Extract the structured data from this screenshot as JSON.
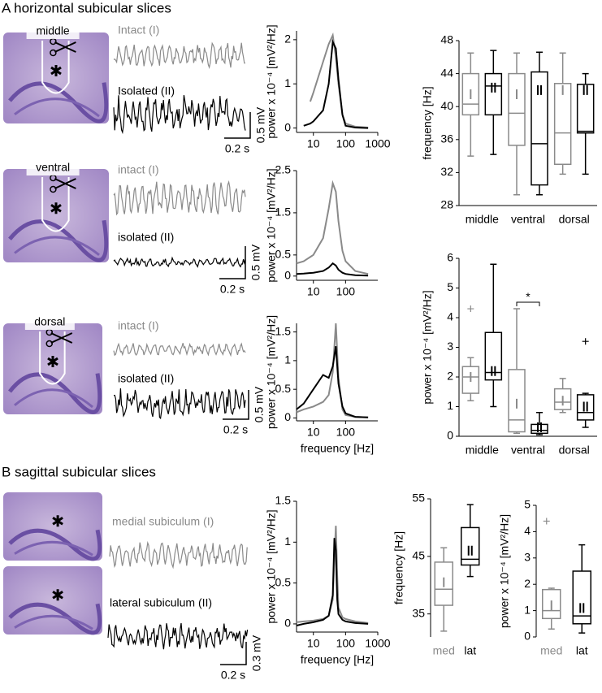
{
  "panel_a": {
    "title": "A horizontal subicular slices",
    "rows": [
      {
        "region": "middle",
        "intact": "Intact (I)",
        "isolated": "Isolated (II)",
        "scale_v": "0.5 mV",
        "scale_t": "0.2 s"
      },
      {
        "region": "ventral",
        "intact": "intact (I)",
        "isolated": "isolated (II)",
        "scale_v": "0.5 mV",
        "scale_t": "0.2 s"
      },
      {
        "region": "dorsal",
        "intact": "intact (I)",
        "isolated": "isolated (II)",
        "scale_v": "0.5 mV",
        "scale_t": "0.2 s"
      }
    ]
  },
  "panel_b": {
    "title": "B sagittal subicular slices",
    "medial": "medial subiculum (I)",
    "lateral": "lateral subiculum (II)",
    "scale_v": "0.3 mV",
    "scale_t": "0.2 s"
  },
  "chart_data": [
    {
      "type": "line",
      "xscale": "log",
      "ylabel": "power x 10⁻⁴ [mV²/Hz]",
      "x": [
        5,
        8,
        10,
        20,
        30,
        40,
        50,
        60,
        80,
        100,
        200,
        500
      ],
      "xlim": [
        3,
        1000
      ],
      "xticks": [
        10,
        100,
        1000
      ],
      "ylim": [
        -0.1,
        2.2
      ],
      "yticks": [
        0,
        1,
        2
      ],
      "series": [
        {
          "color": "#8a8a8a",
          "values": [
            null,
            0.6,
            0.8,
            1.5,
            1.9,
            2.1,
            1.6,
            1.0,
            0.3,
            0.1,
            0.03,
            0.01
          ]
        },
        {
          "color": "#000000",
          "values": [
            0.05,
            0.1,
            0.15,
            0.4,
            1.0,
            1.95,
            1.8,
            1.1,
            0.3,
            0.05,
            0.01,
            0.0
          ]
        }
      ]
    },
    {
      "type": "line",
      "xscale": "log",
      "ylabel": "power x 10⁻⁴ [mV²/Hz]",
      "x": [
        3,
        5,
        10,
        20,
        30,
        40,
        50,
        60,
        80,
        100,
        200,
        500
      ],
      "xlim": [
        3,
        1000
      ],
      "xticks": [
        10,
        100
      ],
      "ylim": [
        -0.1,
        2.5
      ],
      "yticks": [
        0,
        0.5,
        1.5,
        2.5
      ],
      "series": [
        {
          "color": "#8a8a8a",
          "values": [
            0.3,
            0.35,
            0.5,
            0.9,
            1.6,
            2.2,
            2.0,
            1.3,
            0.6,
            0.35,
            0.12,
            0.05
          ]
        },
        {
          "color": "#000000",
          "values": [
            0.05,
            0.06,
            0.08,
            0.12,
            0.2,
            0.3,
            0.25,
            0.15,
            0.08,
            0.05,
            0.02,
            0.01
          ]
        }
      ]
    },
    {
      "type": "line",
      "xscale": "log",
      "ylabel": "power x 10⁻⁴ [mV²/Hz]",
      "xlabel": "frequency [Hz]",
      "x": [
        3,
        5,
        10,
        20,
        30,
        40,
        50,
        60,
        80,
        100,
        200,
        500
      ],
      "xlim": [
        3,
        1000
      ],
      "xticks": [
        10,
        100
      ],
      "ylim": [
        -0.05,
        1.65
      ],
      "yticks": [
        0,
        0.5,
        1,
        1.5
      ],
      "series": [
        {
          "color": "#8a8a8a",
          "values": [
            0.1,
            0.15,
            0.2,
            0.28,
            0.4,
            0.8,
            1.65,
            0.7,
            0.15,
            0.05,
            0.02,
            0.01
          ]
        },
        {
          "color": "#000000",
          "values": [
            0.15,
            0.25,
            0.5,
            0.75,
            0.7,
            0.9,
            1.25,
            0.6,
            0.2,
            0.08,
            0.02,
            0.01
          ]
        }
      ]
    },
    {
      "type": "box",
      "ylabel": "frequency [Hz]",
      "categories": [
        "middle",
        "ventral",
        "dorsal"
      ],
      "ylim": [
        28,
        48
      ],
      "yticks": [
        28,
        32,
        36,
        40,
        44,
        48
      ],
      "series": [
        {
          "color": "#8a8a8a",
          "boxes": [
            {
              "min": 34,
              "q1": 39,
              "median": 40.3,
              "q3": 44,
              "max": 46.5,
              "mean": 41.5
            },
            {
              "min": 29.3,
              "q1": 35.3,
              "median": 39.2,
              "q3": 44,
              "max": 46.5,
              "mean": 41.5
            },
            {
              "min": 31.8,
              "q1": 33,
              "median": 36.8,
              "q3": 42.8,
              "max": 46.5,
              "mean": 42
            }
          ]
        },
        {
          "color": "#000000",
          "boxes": [
            {
              "min": 34.2,
              "q1": 39,
              "median": 42.5,
              "q3": 44,
              "max": 46.8,
              "mean": 42.3
            },
            {
              "min": 29.3,
              "q1": 30.5,
              "median": 35.5,
              "q3": 44.2,
              "max": 46.6,
              "mean": 42
            },
            {
              "min": 31.8,
              "q1": 36.8,
              "median": 37,
              "q3": 42.7,
              "max": 44,
              "mean": 42
            }
          ]
        }
      ]
    },
    {
      "type": "box",
      "ylabel": "power x 10⁻⁴ [mV²/Hz]",
      "categories": [
        "middle",
        "ventral",
        "dorsal"
      ],
      "ylim": [
        0,
        6
      ],
      "yticks": [
        0,
        1,
        2,
        3,
        4,
        5,
        6
      ],
      "annotation": "*",
      "series": [
        {
          "color": "#8a8a8a",
          "boxes": [
            {
              "min": 1.2,
              "q1": 1.45,
              "median": 2.0,
              "q3": 2.35,
              "max": 2.65,
              "mean": 2.0,
              "outliers": [
                4.3
              ]
            },
            {
              "min": 0.1,
              "q1": 0.15,
              "median": 0.55,
              "q3": 2.25,
              "max": 4.3,
              "mean": 1.1
            },
            {
              "min": 0.8,
              "q1": 0.9,
              "median": 1.15,
              "q3": 1.6,
              "max": 1.95,
              "mean": 1.2
            }
          ]
        },
        {
          "color": "#000000",
          "boxes": [
            {
              "min": 1.0,
              "q1": 1.9,
              "median": 2.15,
              "q3": 3.5,
              "max": 5.8,
              "mean": 2.2
            },
            {
              "min": 0.05,
              "q1": 0.1,
              "median": 0.2,
              "q3": 0.4,
              "max": 0.8,
              "mean": 0.3
            },
            {
              "min": 0.3,
              "q1": 0.55,
              "median": 0.8,
              "q3": 1.4,
              "max": 1.45,
              "mean": 1.0,
              "outliers": [
                3.2
              ]
            }
          ]
        }
      ]
    },
    {
      "type": "line",
      "xscale": "log",
      "ylabel": "power x 10⁻⁴ [mV²/Hz]",
      "xlabel": "frequency [Hz]",
      "x": [
        3,
        5,
        10,
        20,
        30,
        40,
        45,
        50,
        55,
        60,
        80,
        100,
        200,
        500
      ],
      "xlim": [
        3,
        1000
      ],
      "xticks": [
        10,
        100,
        1000
      ],
      "ylim": [
        -0.1,
        1.5
      ],
      "yticks": [
        0,
        0.5,
        1,
        1.5
      ],
      "series": [
        {
          "color": "#8a8a8a",
          "values": [
            0.02,
            0.03,
            0.04,
            0.06,
            0.1,
            0.3,
            0.8,
            1.2,
            0.6,
            0.2,
            0.08,
            0.06,
            0.03,
            0.01
          ]
        },
        {
          "color": "#000000",
          "values": [
            -0.02,
            0.0,
            0.02,
            0.05,
            0.1,
            0.35,
            1.05,
            0.9,
            0.3,
            0.12,
            0.05,
            0.03,
            0.01,
            0.0
          ]
        }
      ]
    },
    {
      "type": "box",
      "ylabel": "frequency [Hz]",
      "categories": [
        "med",
        "lat"
      ],
      "category_colors": [
        "#8a8a8a",
        "#000000"
      ],
      "ylim": [
        31,
        55
      ],
      "yticks": [
        35,
        45,
        55
      ],
      "series": [
        {
          "colors": [
            "#8a8a8a",
            "#000000"
          ],
          "boxes": [
            {
              "min": 32,
              "q1": 36.5,
              "median": 39.3,
              "q3": 44,
              "max": 46.5,
              "mean": 40.5
            },
            {
              "min": 41.5,
              "q1": 43.5,
              "median": 44.5,
              "q3": 50,
              "max": 54,
              "mean": 46
            }
          ]
        }
      ]
    },
    {
      "type": "box",
      "ylabel": "power x 10⁻⁴ [mV²/Hz]",
      "categories": [
        "med",
        "lat"
      ],
      "category_colors": [
        "#8a8a8a",
        "#000000"
      ],
      "ylim": [
        0,
        5
      ],
      "yticks": [
        0,
        1,
        2,
        3,
        4,
        5
      ],
      "series": [
        {
          "colors": [
            "#8a8a8a",
            "#000000"
          ],
          "boxes": [
            {
              "min": 0.3,
              "q1": 0.7,
              "median": 1.0,
              "q3": 1.8,
              "max": 1.85,
              "mean": 1.2,
              "outliers": [
                4.4
              ]
            },
            {
              "min": 0.15,
              "q1": 0.5,
              "median": 0.8,
              "q3": 2.5,
              "max": 3.5,
              "mean": 1.1
            }
          ]
        }
      ]
    }
  ]
}
